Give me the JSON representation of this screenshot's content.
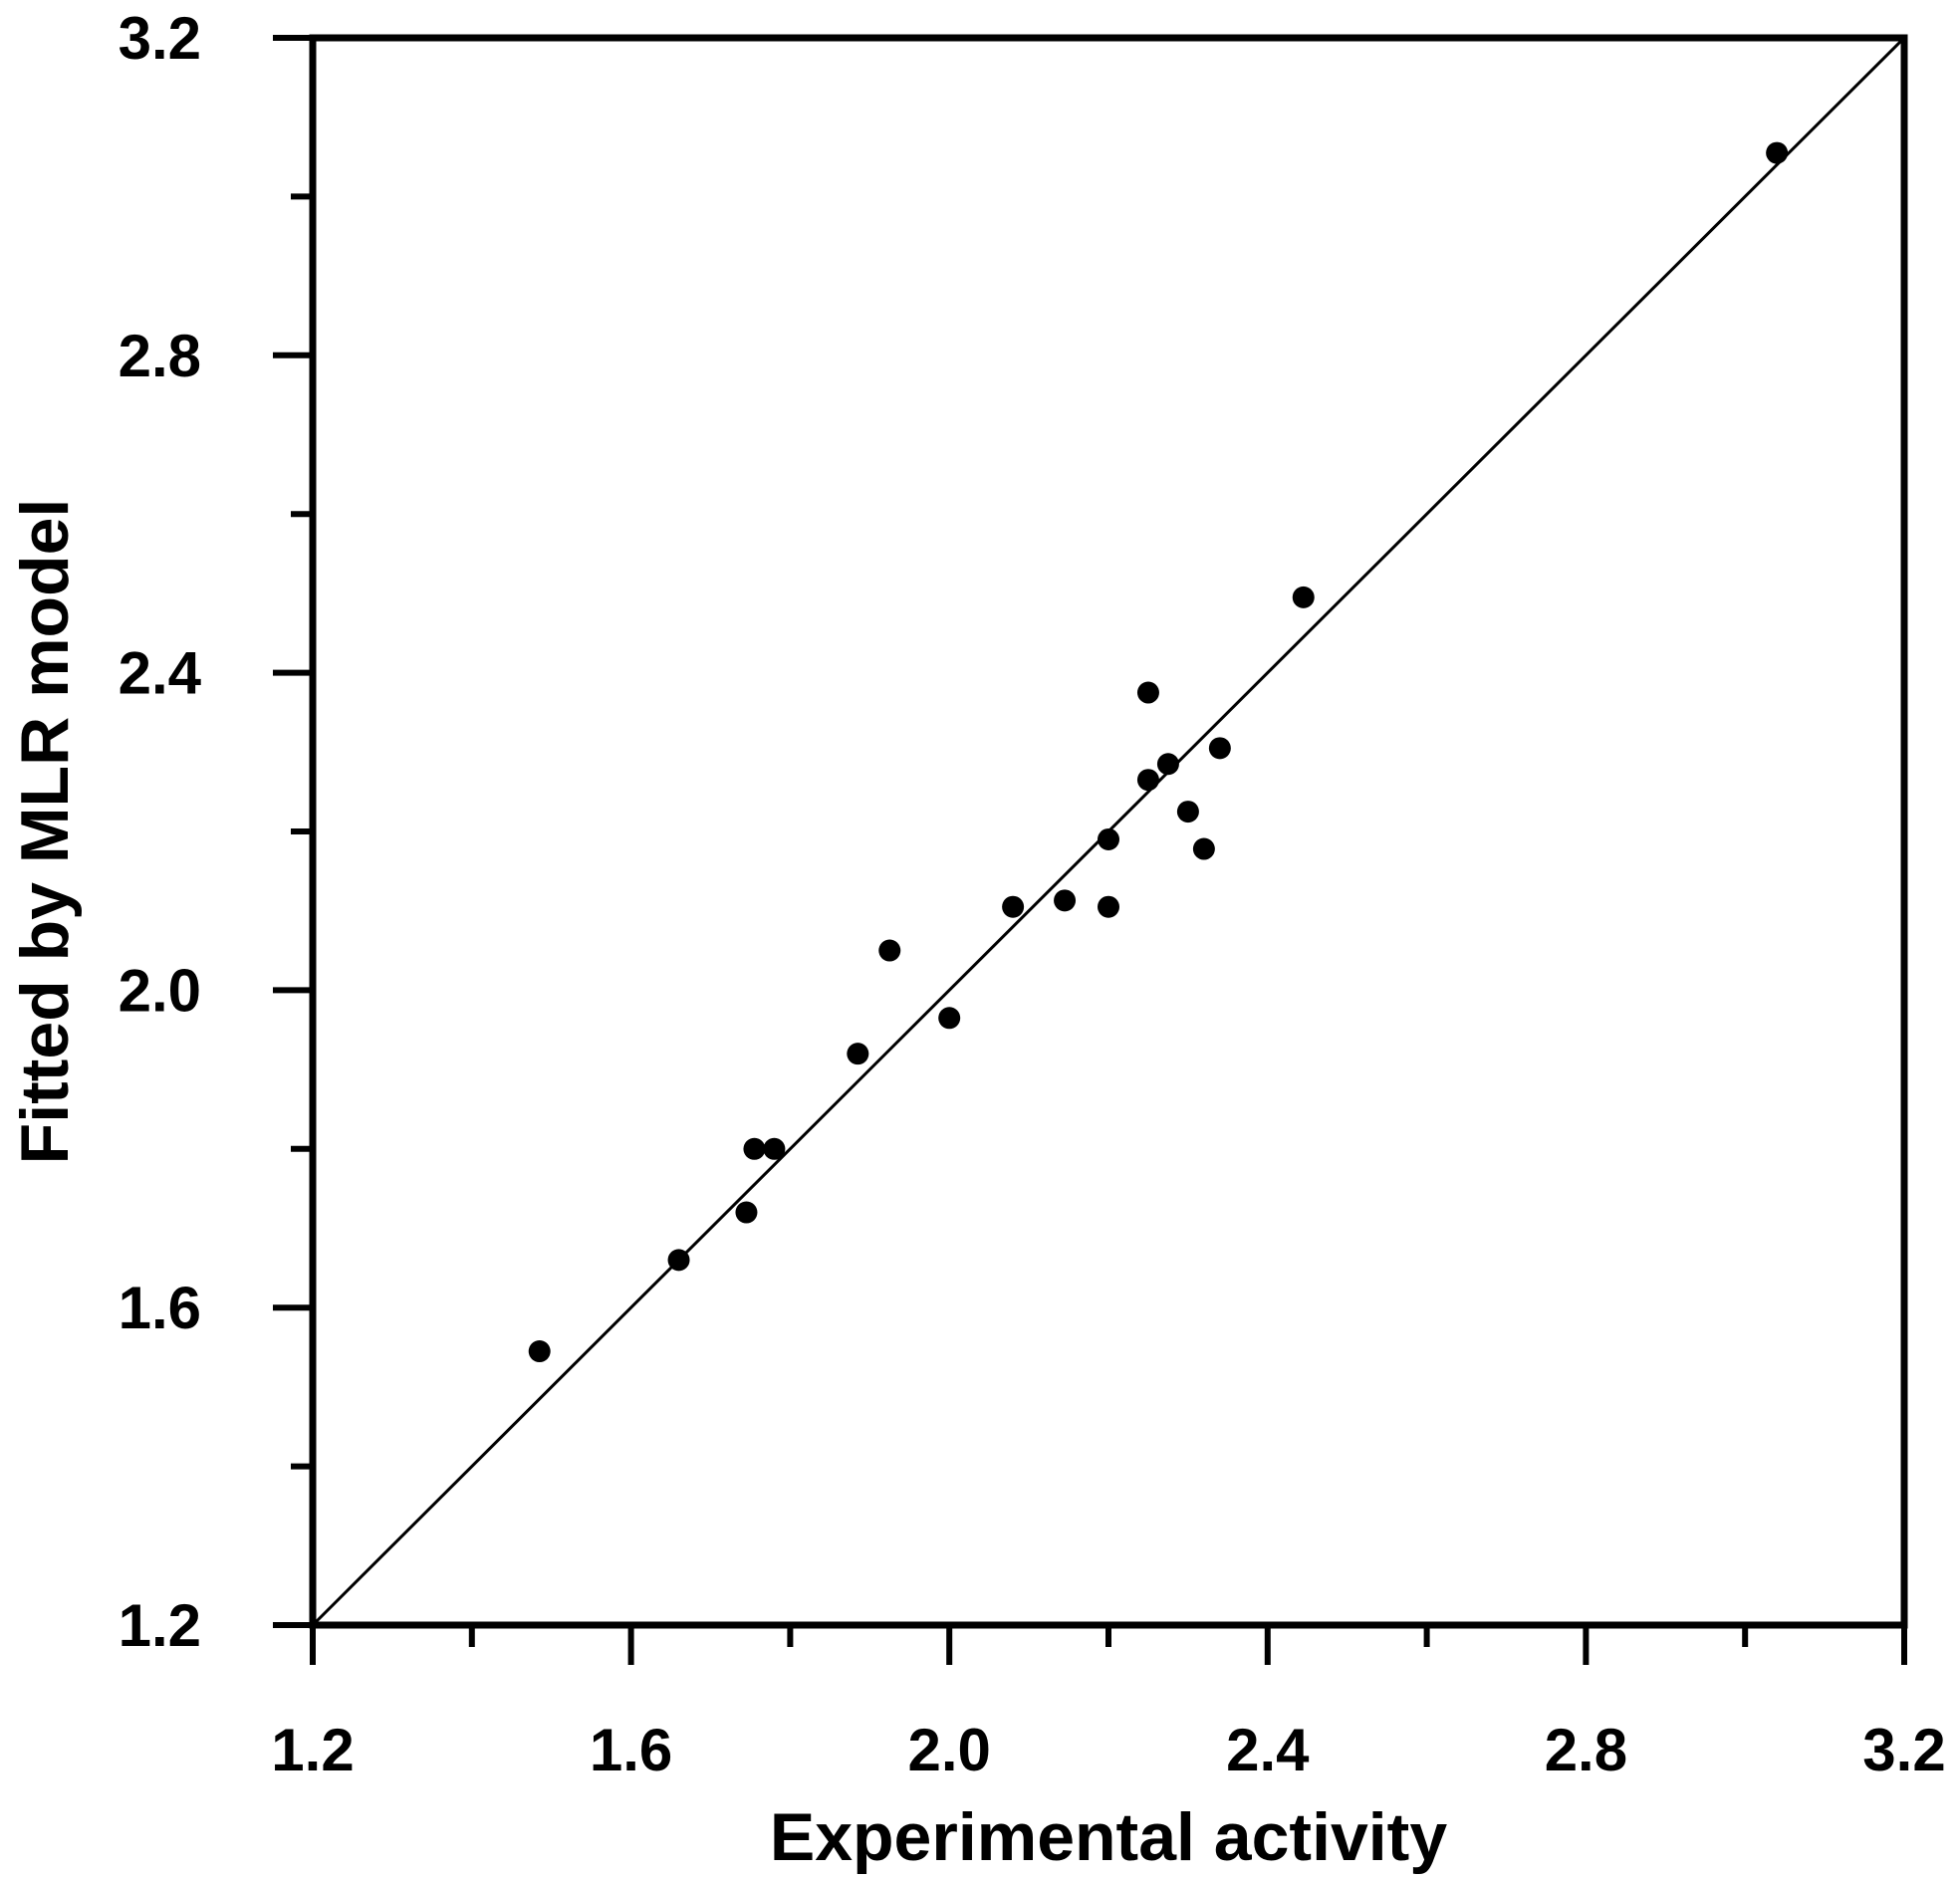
{
  "chart_data": {
    "type": "scatter",
    "title": "",
    "xlabel": "Experimental activity",
    "ylabel": "Fitted by MLR model",
    "xlim": [
      1.2,
      3.2
    ],
    "ylim": [
      1.2,
      3.2
    ],
    "x_ticks": [
      "1.2",
      "1.6",
      "2.0",
      "2.4",
      "2.8",
      "3.2"
    ],
    "y_ticks": [
      "1.2",
      "1.6",
      "2.0",
      "2.4",
      "2.8",
      "3.2"
    ],
    "reference_line": {
      "type": "y=x",
      "from": [
        1.2,
        1.2
      ],
      "to": [
        3.2,
        3.2
      ]
    },
    "grid": false,
    "legend": "none",
    "series": [
      {
        "points": [
          [
            1.485,
            1.545
          ],
          [
            1.66,
            1.66
          ],
          [
            1.745,
            1.72
          ],
          [
            1.755,
            1.8
          ],
          [
            1.78,
            1.8
          ],
          [
            1.885,
            1.92
          ],
          [
            1.925,
            2.05
          ],
          [
            2.0,
            1.965
          ],
          [
            2.08,
            2.105
          ],
          [
            2.145,
            2.113
          ],
          [
            2.2,
            2.19
          ],
          [
            2.2,
            2.105
          ],
          [
            2.25,
            2.375
          ],
          [
            2.25,
            2.265
          ],
          [
            2.275,
            2.285
          ],
          [
            2.3,
            2.225
          ],
          [
            2.32,
            2.178
          ],
          [
            2.34,
            2.305
          ],
          [
            2.445,
            2.495
          ],
          [
            3.04,
            3.055
          ]
        ]
      }
    ]
  }
}
